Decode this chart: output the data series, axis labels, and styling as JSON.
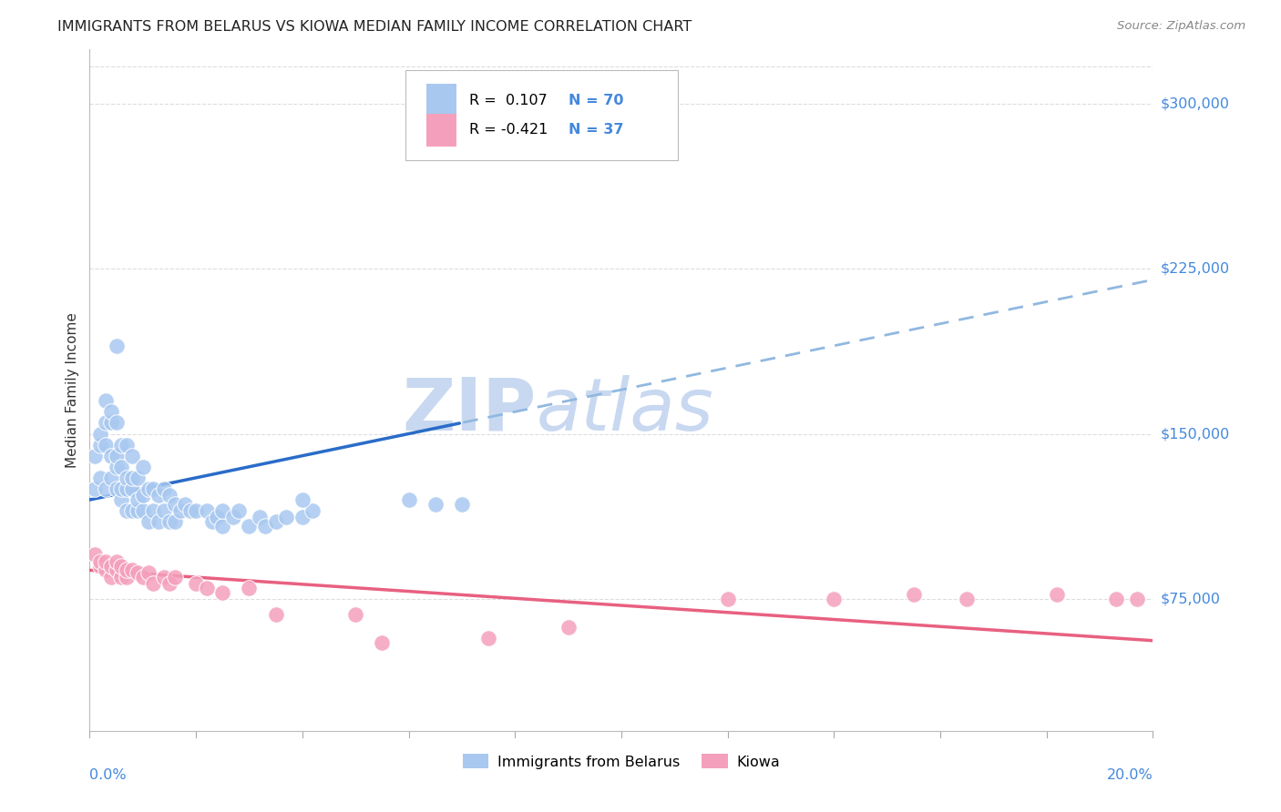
{
  "title": "IMMIGRANTS FROM BELARUS VS KIOWA MEDIAN FAMILY INCOME CORRELATION CHART",
  "source": "Source: ZipAtlas.com",
  "ylabel": "Median Family Income",
  "ytick_labels": [
    "$75,000",
    "$150,000",
    "$225,000",
    "$300,000"
  ],
  "ytick_values": [
    75000,
    150000,
    225000,
    300000
  ],
  "ymin": 15000,
  "ymax": 325000,
  "xmin": 0.0,
  "xmax": 0.2,
  "color_blue": "#A8C8F0",
  "color_pink": "#F4A0BC",
  "color_blue_line_solid": "#2A6CC8",
  "color_blue_line_dash": "#90B8E0",
  "color_pink_line": "#E86080",
  "color_axis_label": "#4488DD",
  "watermark_color": "#C8D8F0",
  "blue_line_solid_end": 0.07,
  "blue_line_intercept": 120000,
  "blue_line_slope": 500000,
  "pink_line_intercept": 88000,
  "pink_line_slope": -160000,
  "blue_x": [
    0.001,
    0.001,
    0.002,
    0.002,
    0.002,
    0.003,
    0.003,
    0.003,
    0.003,
    0.004,
    0.004,
    0.004,
    0.004,
    0.005,
    0.005,
    0.005,
    0.005,
    0.005,
    0.006,
    0.006,
    0.006,
    0.006,
    0.007,
    0.007,
    0.007,
    0.007,
    0.008,
    0.008,
    0.008,
    0.008,
    0.009,
    0.009,
    0.009,
    0.01,
    0.01,
    0.01,
    0.011,
    0.011,
    0.012,
    0.012,
    0.013,
    0.013,
    0.014,
    0.014,
    0.015,
    0.015,
    0.016,
    0.016,
    0.017,
    0.018,
    0.019,
    0.02,
    0.022,
    0.023,
    0.024,
    0.025,
    0.025,
    0.027,
    0.028,
    0.03,
    0.032,
    0.033,
    0.035,
    0.037,
    0.04,
    0.042,
    0.06,
    0.065,
    0.07,
    0.04
  ],
  "blue_y": [
    125000,
    140000,
    130000,
    145000,
    150000,
    125000,
    145000,
    155000,
    165000,
    130000,
    140000,
    155000,
    160000,
    125000,
    135000,
    140000,
    155000,
    190000,
    120000,
    125000,
    135000,
    145000,
    115000,
    125000,
    130000,
    145000,
    115000,
    125000,
    130000,
    140000,
    115000,
    120000,
    130000,
    115000,
    122000,
    135000,
    110000,
    125000,
    115000,
    125000,
    110000,
    122000,
    115000,
    125000,
    110000,
    122000,
    110000,
    118000,
    115000,
    118000,
    115000,
    115000,
    115000,
    110000,
    112000,
    108000,
    115000,
    112000,
    115000,
    108000,
    112000,
    108000,
    110000,
    112000,
    112000,
    115000,
    120000,
    118000,
    118000,
    120000
  ],
  "pink_x": [
    0.001,
    0.002,
    0.002,
    0.003,
    0.003,
    0.004,
    0.004,
    0.005,
    0.005,
    0.006,
    0.006,
    0.007,
    0.007,
    0.008,
    0.009,
    0.01,
    0.011,
    0.012,
    0.014,
    0.015,
    0.016,
    0.02,
    0.022,
    0.025,
    0.03,
    0.035,
    0.05,
    0.055,
    0.075,
    0.09,
    0.12,
    0.14,
    0.155,
    0.165,
    0.182,
    0.193,
    0.197
  ],
  "pink_y": [
    95000,
    90000,
    92000,
    88000,
    92000,
    85000,
    90000,
    88000,
    92000,
    85000,
    90000,
    85000,
    88000,
    88000,
    87000,
    85000,
    87000,
    82000,
    85000,
    82000,
    85000,
    82000,
    80000,
    78000,
    80000,
    68000,
    68000,
    55000,
    57000,
    62000,
    75000,
    75000,
    77000,
    75000,
    77000,
    75000,
    75000
  ]
}
